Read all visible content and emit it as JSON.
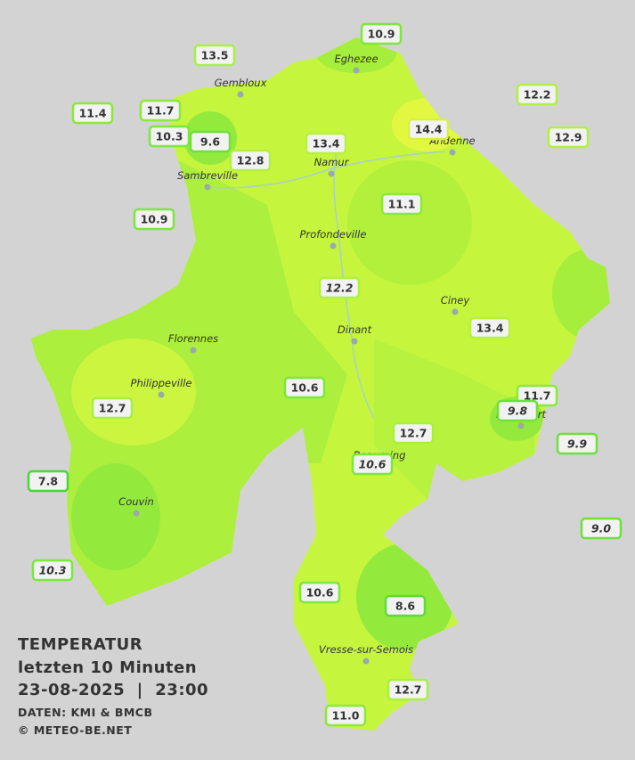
{
  "title": [
    "TEMPERATUR",
    "letzten 10 Minuten",
    "23-08-2025  |  23:00"
  ],
  "credits": [
    "DATEN: KMI & BMCB",
    "© METEO-BE.NET"
  ],
  "cities": [
    "Eghezee",
    "Gembloux",
    "Andenne",
    "Namur",
    "Sambreville",
    "Profondeville",
    "Ciney",
    "Dinant",
    "Florennes",
    "Philippeville",
    "Rochefort",
    "Beauraing",
    "Couvin",
    "Vresse-sur-Semois"
  ],
  "stations": [
    "10.9",
    "13.5",
    "11.4",
    "11.7",
    "12.2",
    "10.3",
    "9.6",
    "12.8",
    "13.4",
    "14.4",
    "12.9",
    "10.9",
    "11.1",
    "12.2",
    "13.4",
    "10.6",
    "12.7",
    "11.7",
    "9.8",
    "9.9",
    "12.7",
    "10.6",
    "7.8",
    "9.0",
    "10.3",
    "10.6",
    "8.6",
    "12.7",
    "11.0"
  ]
}
